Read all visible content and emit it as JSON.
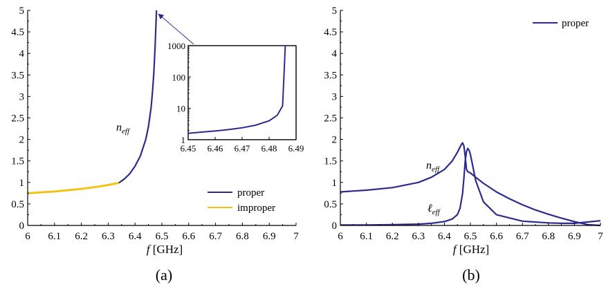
{
  "colors": {
    "proper": "#2b2b8f",
    "improper": "#f2c314",
    "axis": "#000000",
    "arrow": "#2b2b8f"
  },
  "chart_data": [
    {
      "panel_label": "(a)",
      "type": "line",
      "xlabel_italic": "f",
      "xlabel_rest": " [GHz]",
      "xlim": [
        6,
        7
      ],
      "ylim": [
        0,
        5
      ],
      "xticks": [
        "6",
        "6.1",
        "6.2",
        "6.3",
        "6.4",
        "6.5",
        "6.6",
        "6.7",
        "6.8",
        "6.9",
        "7"
      ],
      "yticks": [
        "0",
        "0.5",
        "1",
        "1.5",
        "2",
        "2.5",
        "3",
        "3.5",
        "4",
        "4.5",
        "5"
      ],
      "legend": {
        "position": "bottom-right",
        "entries": [
          "proper",
          "improper"
        ]
      },
      "curve_label": {
        "base": "n",
        "sub": "eff"
      },
      "series": [
        {
          "name": "improper",
          "color_key": "improper",
          "x": [
            6.0,
            6.05,
            6.1,
            6.15,
            6.2,
            6.25,
            6.3,
            6.34
          ],
          "y": [
            0.75,
            0.77,
            0.79,
            0.82,
            0.85,
            0.89,
            0.94,
            0.99
          ]
        },
        {
          "name": "proper",
          "color_key": "proper",
          "x": [
            6.34,
            6.36,
            6.38,
            6.4,
            6.42,
            6.44,
            6.45,
            6.46,
            6.465,
            6.47,
            6.475,
            6.478,
            6.48
          ],
          "y": [
            0.99,
            1.08,
            1.2,
            1.38,
            1.62,
            2.0,
            2.3,
            2.75,
            3.1,
            3.55,
            4.2,
            4.7,
            5.0
          ]
        }
      ],
      "inset": {
        "type": "line",
        "yscale": "log",
        "xlim": [
          6.45,
          6.49
        ],
        "ylim": [
          1,
          1000
        ],
        "xticks": [
          "6.45",
          "6.46",
          "6.47",
          "6.48",
          "6.49"
        ],
        "yticks": [
          "1",
          "10",
          "100",
          "1000"
        ],
        "series": [
          {
            "name": "proper",
            "color_key": "proper",
            "x": [
              6.45,
              6.455,
              6.46,
              6.465,
              6.47,
              6.475,
              6.48,
              6.483,
              6.485,
              6.4855,
              6.486
            ],
            "y": [
              1.6,
              1.75,
              1.9,
              2.1,
              2.4,
              2.9,
              4.0,
              6.0,
              12.0,
              100,
              1000
            ]
          }
        ]
      }
    },
    {
      "panel_label": "(b)",
      "type": "line",
      "xlabel_italic": "f",
      "xlabel_rest": " [GHz]",
      "xlim": [
        6,
        7
      ],
      "ylim": [
        0,
        5
      ],
      "xticks": [
        "6",
        "6.1",
        "6.2",
        "6.3",
        "6.4",
        "6.5",
        "6.6",
        "6.7",
        "6.8",
        "6.9",
        "7"
      ],
      "yticks": [
        "0",
        "0.5",
        "1",
        "1.5",
        "2",
        "2.5",
        "3",
        "3.5",
        "4",
        "4.5",
        "5"
      ],
      "legend": {
        "position": "top-right",
        "entries": [
          "proper"
        ]
      },
      "curve_labels": [
        {
          "base": "n",
          "sub": "eff"
        },
        {
          "base": "ℓ",
          "sub": "eff"
        }
      ],
      "series": [
        {
          "name": "n_eff",
          "color_key": "proper",
          "x": [
            6.0,
            6.1,
            6.2,
            6.3,
            6.35,
            6.4,
            6.43,
            6.45,
            6.465,
            6.47,
            6.475,
            6.48,
            6.485,
            6.49,
            6.5,
            6.52,
            6.55,
            6.6,
            6.65,
            6.7,
            6.75,
            6.8,
            6.85,
            6.9,
            6.95,
            7.0
          ],
          "y": [
            0.78,
            0.82,
            0.88,
            1.0,
            1.12,
            1.3,
            1.5,
            1.7,
            1.88,
            1.92,
            1.85,
            1.6,
            1.3,
            1.25,
            1.22,
            1.12,
            0.98,
            0.78,
            0.62,
            0.48,
            0.36,
            0.26,
            0.17,
            0.09,
            0.02,
            0.0
          ]
        },
        {
          "name": "l_eff",
          "color_key": "proper",
          "x": [
            6.0,
            6.1,
            6.2,
            6.3,
            6.35,
            6.4,
            6.43,
            6.45,
            6.46,
            6.47,
            6.475,
            6.48,
            6.485,
            6.49,
            6.495,
            6.5,
            6.51,
            6.52,
            6.55,
            6.6,
            6.7,
            6.8,
            6.85,
            6.9,
            6.95,
            7.0
          ],
          "y": [
            0.01,
            0.01,
            0.02,
            0.03,
            0.05,
            0.09,
            0.15,
            0.25,
            0.4,
            0.75,
            1.1,
            1.5,
            1.72,
            1.79,
            1.75,
            1.65,
            1.35,
            1.05,
            0.55,
            0.25,
            0.1,
            0.06,
            0.05,
            0.05,
            0.08,
            0.11
          ]
        }
      ]
    }
  ]
}
